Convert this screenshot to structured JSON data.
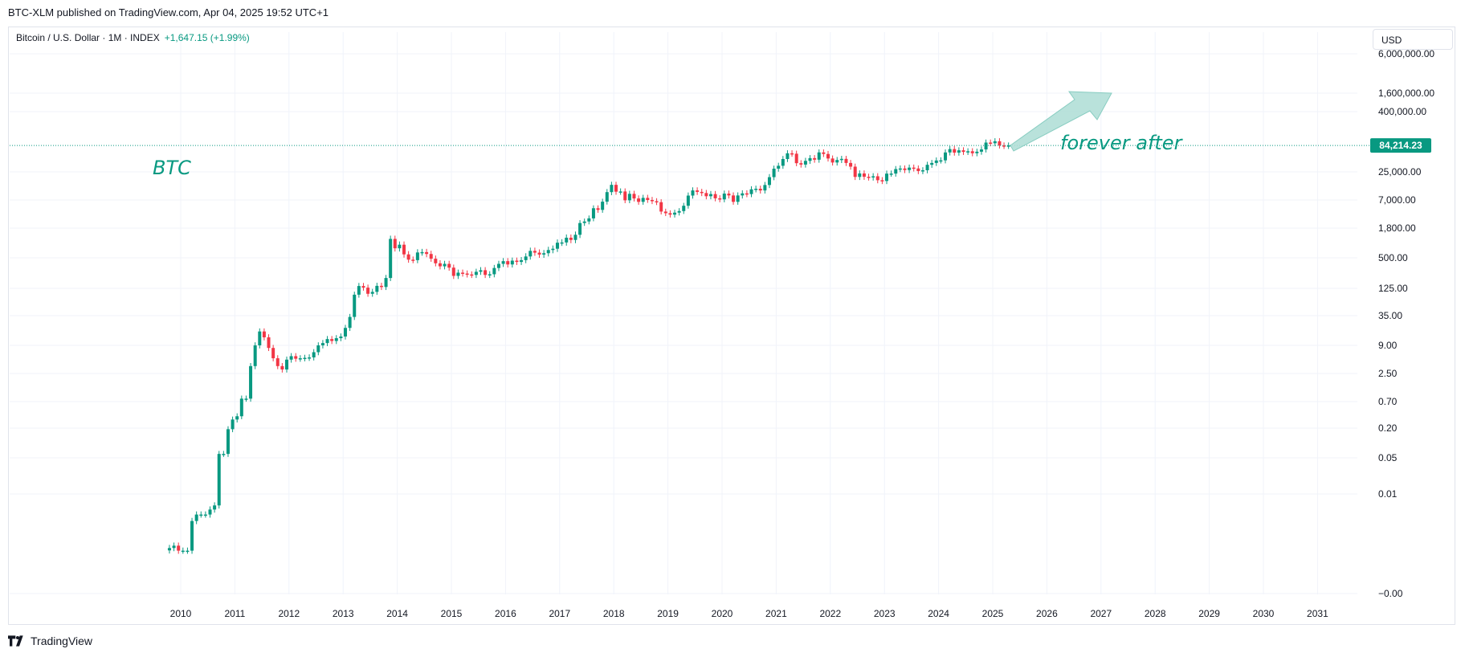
{
  "header": {
    "published_line": "BTC-XLM published on TradingView.com, Apr 04, 2025 19:52 UTC+1"
  },
  "symbol": {
    "name": "Bitcoin / U.S. Dollar · 1M · INDEX",
    "change": "+1,647.15 (+1.99%)"
  },
  "currency": {
    "label": "USD"
  },
  "footer": {
    "brand": "TradingView"
  },
  "colors": {
    "up": "#089981",
    "down": "#f23645",
    "grid": "#f0f3fa",
    "axis_text": "#131722",
    "annotation": "#089981",
    "arrow_fill": "#b2dfd8"
  },
  "chart_data": {
    "type": "candlestick",
    "title": "",
    "xlabel": "",
    "ylabel": "",
    "log_scale": true,
    "grid": true,
    "x_ticks": [
      "2010",
      "2011",
      "2012",
      "2013",
      "2014",
      "2015",
      "2016",
      "2017",
      "2018",
      "2019",
      "2020",
      "2021",
      "2022",
      "2023",
      "2024",
      "2025",
      "2026",
      "2027",
      "2028",
      "2029",
      "2030",
      "2031"
    ],
    "y_ticks": [
      "6,000,000.00",
      "1,600,000.00",
      "400,000.00",
      "25,000.00",
      "7,000.00",
      "1,800.00",
      "500.00",
      "125.00",
      "35.00",
      "9.00",
      "2.50",
      "0.70",
      "0.20",
      "0.05",
      "0.01",
      "−0.00"
    ],
    "current_price": "84,214.23",
    "annotations": [
      {
        "text": "BTC"
      },
      {
        "text": "forever after"
      }
    ],
    "close_series": [
      [
        "2009-10",
        0.0009
      ],
      [
        "2009-11",
        0.001
      ],
      [
        "2009-12",
        0.0008
      ],
      [
        "2010-01",
        0.0008
      ],
      [
        "2010-02",
        0.0008
      ],
      [
        "2010-03",
        0.003
      ],
      [
        "2010-04",
        0.004
      ],
      [
        "2010-05",
        0.004
      ],
      [
        "2010-06",
        0.004
      ],
      [
        "2010-07",
        0.005
      ],
      [
        "2010-08",
        0.006
      ],
      [
        "2010-09",
        0.06
      ],
      [
        "2010-10",
        0.06
      ],
      [
        "2010-11",
        0.19
      ],
      [
        "2010-12",
        0.3
      ],
      [
        "2011-01",
        0.35
      ],
      [
        "2011-02",
        0.8
      ],
      [
        "2011-03",
        0.8
      ],
      [
        "2011-04",
        3.5
      ],
      [
        "2011-05",
        9
      ],
      [
        "2011-06",
        17
      ],
      [
        "2011-07",
        13
      ],
      [
        "2011-08",
        8
      ],
      [
        "2011-09",
        5
      ],
      [
        "2011-10",
        3.5
      ],
      [
        "2011-11",
        3
      ],
      [
        "2011-12",
        4.7
      ],
      [
        "2012-01",
        5.5
      ],
      [
        "2012-02",
        4.9
      ],
      [
        "2012-03",
        5
      ],
      [
        "2012-04",
        5.1
      ],
      [
        "2012-05",
        5.2
      ],
      [
        "2012-06",
        6.6
      ],
      [
        "2012-07",
        9
      ],
      [
        "2012-08",
        10
      ],
      [
        "2012-09",
        12
      ],
      [
        "2012-10",
        11
      ],
      [
        "2012-11",
        12.5
      ],
      [
        "2012-12",
        13.5
      ],
      [
        "2013-01",
        20
      ],
      [
        "2013-02",
        33
      ],
      [
        "2013-03",
        93
      ],
      [
        "2013-04",
        139
      ],
      [
        "2013-05",
        129
      ],
      [
        "2013-06",
        97
      ],
      [
        "2013-07",
        106
      ],
      [
        "2013-08",
        140
      ],
      [
        "2013-09",
        133
      ],
      [
        "2013-10",
        200
      ],
      [
        "2013-11",
        1130
      ],
      [
        "2013-12",
        754
      ],
      [
        "2014-01",
        880
      ],
      [
        "2014-02",
        580
      ],
      [
        "2014-03",
        460
      ],
      [
        "2014-04",
        450
      ],
      [
        "2014-05",
        630
      ],
      [
        "2014-06",
        640
      ],
      [
        "2014-07",
        590
      ],
      [
        "2014-08",
        480
      ],
      [
        "2014-09",
        390
      ],
      [
        "2014-10",
        340
      ],
      [
        "2014-11",
        380
      ],
      [
        "2014-12",
        320
      ],
      [
        "2015-01",
        220
      ],
      [
        "2015-02",
        255
      ],
      [
        "2015-03",
        245
      ],
      [
        "2015-04",
        235
      ],
      [
        "2015-05",
        230
      ],
      [
        "2015-06",
        265
      ],
      [
        "2015-07",
        285
      ],
      [
        "2015-08",
        230
      ],
      [
        "2015-09",
        237
      ],
      [
        "2015-10",
        315
      ],
      [
        "2015-11",
        380
      ],
      [
        "2015-12",
        430
      ],
      [
        "2016-01",
        370
      ],
      [
        "2016-02",
        440
      ],
      [
        "2016-03",
        415
      ],
      [
        "2016-04",
        450
      ],
      [
        "2016-05",
        530
      ],
      [
        "2016-06",
        675
      ],
      [
        "2016-07",
        625
      ],
      [
        "2016-08",
        575
      ],
      [
        "2016-09",
        610
      ],
      [
        "2016-10",
        700
      ],
      [
        "2016-11",
        740
      ],
      [
        "2016-12",
        960
      ],
      [
        "2017-01",
        970
      ],
      [
        "2017-02",
        1190
      ],
      [
        "2017-03",
        1080
      ],
      [
        "2017-04",
        1350
      ],
      [
        "2017-05",
        2300
      ],
      [
        "2017-06",
        2480
      ],
      [
        "2017-07",
        2880
      ],
      [
        "2017-08",
        4700
      ],
      [
        "2017-09",
        4340
      ],
      [
        "2017-10",
        6450
      ],
      [
        "2017-11",
        10000
      ],
      [
        "2017-12",
        13900
      ],
      [
        "2018-01",
        10200
      ],
      [
        "2018-02",
        10300
      ],
      [
        "2018-03",
        6900
      ],
      [
        "2018-04",
        9250
      ],
      [
        "2018-05",
        7500
      ],
      [
        "2018-06",
        6400
      ],
      [
        "2018-07",
        7700
      ],
      [
        "2018-08",
        7000
      ],
      [
        "2018-09",
        6600
      ],
      [
        "2018-10",
        6300
      ],
      [
        "2018-11",
        4000
      ],
      [
        "2018-12",
        3700
      ],
      [
        "2019-01",
        3450
      ],
      [
        "2019-02",
        3800
      ],
      [
        "2019-03",
        4100
      ],
      [
        "2019-04",
        5300
      ],
      [
        "2019-05",
        8550
      ],
      [
        "2019-06",
        10800
      ],
      [
        "2019-07",
        10100
      ],
      [
        "2019-08",
        9600
      ],
      [
        "2019-09",
        8300
      ],
      [
        "2019-10",
        9150
      ],
      [
        "2019-11",
        7550
      ],
      [
        "2019-12",
        7200
      ],
      [
        "2020-01",
        9350
      ],
      [
        "2020-02",
        8600
      ],
      [
        "2020-03",
        6400
      ],
      [
        "2020-04",
        8600
      ],
      [
        "2020-05",
        9450
      ],
      [
        "2020-06",
        9140
      ],
      [
        "2020-07",
        11350
      ],
      [
        "2020-08",
        11650
      ],
      [
        "2020-09",
        10780
      ],
      [
        "2020-10",
        13800
      ],
      [
        "2020-11",
        19700
      ],
      [
        "2020-12",
        29000
      ],
      [
        "2021-01",
        33100
      ],
      [
        "2021-02",
        45200
      ],
      [
        "2021-03",
        58800
      ],
      [
        "2021-04",
        57700
      ],
      [
        "2021-05",
        37300
      ],
      [
        "2021-06",
        35000
      ],
      [
        "2021-07",
        41500
      ],
      [
        "2021-08",
        47100
      ],
      [
        "2021-09",
        43800
      ],
      [
        "2021-10",
        61300
      ],
      [
        "2021-11",
        57000
      ],
      [
        "2021-12",
        46300
      ],
      [
        "2022-01",
        38500
      ],
      [
        "2022-02",
        43200
      ],
      [
        "2022-03",
        45500
      ],
      [
        "2022-04",
        37700
      ],
      [
        "2022-05",
        31800
      ],
      [
        "2022-06",
        19900
      ],
      [
        "2022-07",
        23300
      ],
      [
        "2022-08",
        20050
      ],
      [
        "2022-09",
        19400
      ],
      [
        "2022-10",
        20500
      ],
      [
        "2022-11",
        17150
      ],
      [
        "2022-12",
        16550
      ],
      [
        "2023-01",
        23100
      ],
      [
        "2023-02",
        23150
      ],
      [
        "2023-03",
        28450
      ],
      [
        "2023-04",
        29250
      ],
      [
        "2023-05",
        27200
      ],
      [
        "2023-06",
        30450
      ],
      [
        "2023-07",
        29250
      ],
      [
        "2023-08",
        25950
      ],
      [
        "2023-09",
        26950
      ],
      [
        "2023-10",
        34650
      ],
      [
        "2023-11",
        37700
      ],
      [
        "2023-12",
        42250
      ],
      [
        "2024-01",
        42550
      ],
      [
        "2024-02",
        61150
      ],
      [
        "2024-03",
        71300
      ],
      [
        "2024-04",
        60650
      ],
      [
        "2024-05",
        67500
      ],
      [
        "2024-06",
        62700
      ],
      [
        "2024-07",
        64600
      ],
      [
        "2024-08",
        58950
      ],
      [
        "2024-09",
        63300
      ],
      [
        "2024-10",
        70200
      ],
      [
        "2024-11",
        96400
      ],
      [
        "2024-12",
        93400
      ],
      [
        "2025-01",
        102400
      ],
      [
        "2025-02",
        84300
      ],
      [
        "2025-03",
        82550
      ],
      [
        "2025-04",
        84214.23
      ]
    ]
  }
}
